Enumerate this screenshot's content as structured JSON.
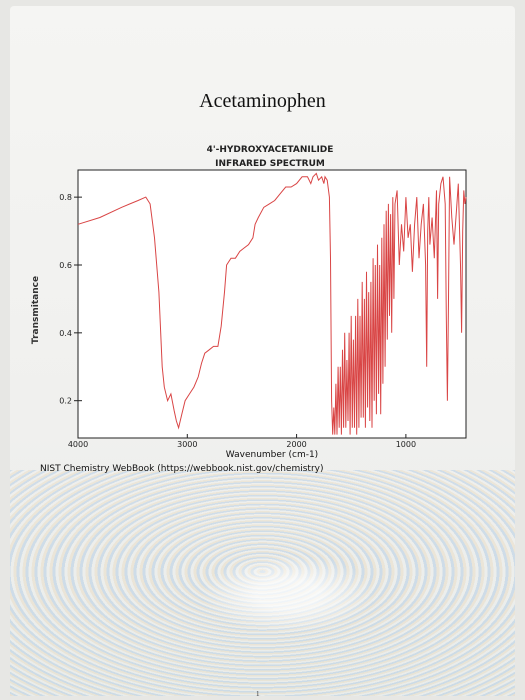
{
  "page": {
    "title": "Acetaminophen",
    "caption": "NIST Chemistry WebBook (https://webbook.nist.gov/chemistry)",
    "page_number": "1"
  },
  "chart_data": {
    "type": "line",
    "title": "4'-HYDROXYACETANILIDE",
    "subtitle": "INFRARED SPECTRUM",
    "xlabel": "Wavenumber (cm-1)",
    "ylabel": "Transmitance",
    "xlim": [
      4000,
      450
    ],
    "ylim": [
      0.09,
      0.88
    ],
    "x_ticks": [
      4000,
      3000,
      2000,
      1000
    ],
    "y_ticks": [
      0.2,
      0.4,
      0.6,
      0.8
    ],
    "grid": false,
    "line_color": "#d94545",
    "series": [
      {
        "points": [
          [
            4000,
            0.72
          ],
          [
            3800,
            0.74
          ],
          [
            3600,
            0.77
          ],
          [
            3450,
            0.79
          ],
          [
            3380,
            0.8
          ],
          [
            3340,
            0.78
          ],
          [
            3300,
            0.68
          ],
          [
            3260,
            0.52
          ],
          [
            3230,
            0.3
          ],
          [
            3210,
            0.24
          ],
          [
            3180,
            0.2
          ],
          [
            3150,
            0.22
          ],
          [
            3120,
            0.17
          ],
          [
            3100,
            0.14
          ],
          [
            3080,
            0.12
          ],
          [
            3050,
            0.16
          ],
          [
            3020,
            0.2
          ],
          [
            2980,
            0.22
          ],
          [
            2940,
            0.24
          ],
          [
            2900,
            0.27
          ],
          [
            2870,
            0.31
          ],
          [
            2840,
            0.34
          ],
          [
            2800,
            0.35
          ],
          [
            2760,
            0.36
          ],
          [
            2720,
            0.36
          ],
          [
            2690,
            0.42
          ],
          [
            2660,
            0.52
          ],
          [
            2640,
            0.6
          ],
          [
            2600,
            0.62
          ],
          [
            2560,
            0.62
          ],
          [
            2520,
            0.64
          ],
          [
            2480,
            0.65
          ],
          [
            2440,
            0.66
          ],
          [
            2400,
            0.68
          ],
          [
            2380,
            0.72
          ],
          [
            2350,
            0.74
          ],
          [
            2300,
            0.77
          ],
          [
            2250,
            0.78
          ],
          [
            2200,
            0.79
          ],
          [
            2150,
            0.81
          ],
          [
            2100,
            0.83
          ],
          [
            2050,
            0.83
          ],
          [
            2000,
            0.84
          ],
          [
            1950,
            0.86
          ],
          [
            1900,
            0.86
          ],
          [
            1870,
            0.84
          ],
          [
            1850,
            0.86
          ],
          [
            1820,
            0.87
          ],
          [
            1800,
            0.85
          ],
          [
            1770,
            0.86
          ],
          [
            1750,
            0.84
          ],
          [
            1740,
            0.86
          ],
          [
            1720,
            0.85
          ],
          [
            1700,
            0.8
          ],
          [
            1690,
            0.62
          ],
          [
            1680,
            0.2
          ],
          [
            1670,
            0.1
          ],
          [
            1660,
            0.18
          ],
          [
            1650,
            0.1
          ],
          [
            1640,
            0.25
          ],
          [
            1630,
            0.1
          ],
          [
            1620,
            0.3
          ],
          [
            1610,
            0.12
          ],
          [
            1600,
            0.3
          ],
          [
            1590,
            0.1
          ],
          [
            1580,
            0.35
          ],
          [
            1570,
            0.12
          ],
          [
            1560,
            0.4
          ],
          [
            1550,
            0.12
          ],
          [
            1540,
            0.32
          ],
          [
            1530,
            0.14
          ],
          [
            1520,
            0.4
          ],
          [
            1510,
            0.1
          ],
          [
            1500,
            0.45
          ],
          [
            1490,
            0.12
          ],
          [
            1480,
            0.38
          ],
          [
            1470,
            0.12
          ],
          [
            1460,
            0.45
          ],
          [
            1450,
            0.1
          ],
          [
            1440,
            0.5
          ],
          [
            1430,
            0.12
          ],
          [
            1420,
            0.45
          ],
          [
            1410,
            0.15
          ],
          [
            1400,
            0.55
          ],
          [
            1390,
            0.15
          ],
          [
            1380,
            0.5
          ],
          [
            1370,
            0.12
          ],
          [
            1360,
            0.58
          ],
          [
            1350,
            0.18
          ],
          [
            1340,
            0.52
          ],
          [
            1330,
            0.14
          ],
          [
            1320,
            0.55
          ],
          [
            1310,
            0.12
          ],
          [
            1300,
            0.62
          ],
          [
            1290,
            0.2
          ],
          [
            1280,
            0.6
          ],
          [
            1270,
            0.16
          ],
          [
            1260,
            0.66
          ],
          [
            1250,
            0.22
          ],
          [
            1240,
            0.6
          ],
          [
            1230,
            0.16
          ],
          [
            1220,
            0.68
          ],
          [
            1210,
            0.25
          ],
          [
            1200,
            0.72
          ],
          [
            1190,
            0.3
          ],
          [
            1180,
            0.76
          ],
          [
            1170,
            0.38
          ],
          [
            1160,
            0.78
          ],
          [
            1150,
            0.45
          ],
          [
            1140,
            0.75
          ],
          [
            1130,
            0.4
          ],
          [
            1120,
            0.8
          ],
          [
            1110,
            0.5
          ],
          [
            1100,
            0.78
          ],
          [
            1080,
            0.82
          ],
          [
            1060,
            0.6
          ],
          [
            1040,
            0.72
          ],
          [
            1020,
            0.64
          ],
          [
            1000,
            0.8
          ],
          [
            980,
            0.68
          ],
          [
            960,
            0.72
          ],
          [
            940,
            0.58
          ],
          [
            920,
            0.72
          ],
          [
            900,
            0.8
          ],
          [
            880,
            0.62
          ],
          [
            860,
            0.72
          ],
          [
            840,
            0.78
          ],
          [
            820,
            0.6
          ],
          [
            810,
            0.3
          ],
          [
            800,
            0.7
          ],
          [
            790,
            0.8
          ],
          [
            780,
            0.66
          ],
          [
            760,
            0.74
          ],
          [
            740,
            0.62
          ],
          [
            720,
            0.82
          ],
          [
            710,
            0.5
          ],
          [
            700,
            0.78
          ],
          [
            680,
            0.84
          ],
          [
            660,
            0.86
          ],
          [
            640,
            0.78
          ],
          [
            630,
            0.45
          ],
          [
            620,
            0.2
          ],
          [
            610,
            0.5
          ],
          [
            600,
            0.86
          ],
          [
            580,
            0.74
          ],
          [
            560,
            0.66
          ],
          [
            540,
            0.75
          ],
          [
            520,
            0.84
          ],
          [
            500,
            0.6
          ],
          [
            490,
            0.4
          ],
          [
            480,
            0.7
          ],
          [
            470,
            0.82
          ],
          [
            460,
            0.78
          ],
          [
            450,
            0.8
          ]
        ]
      }
    ]
  }
}
